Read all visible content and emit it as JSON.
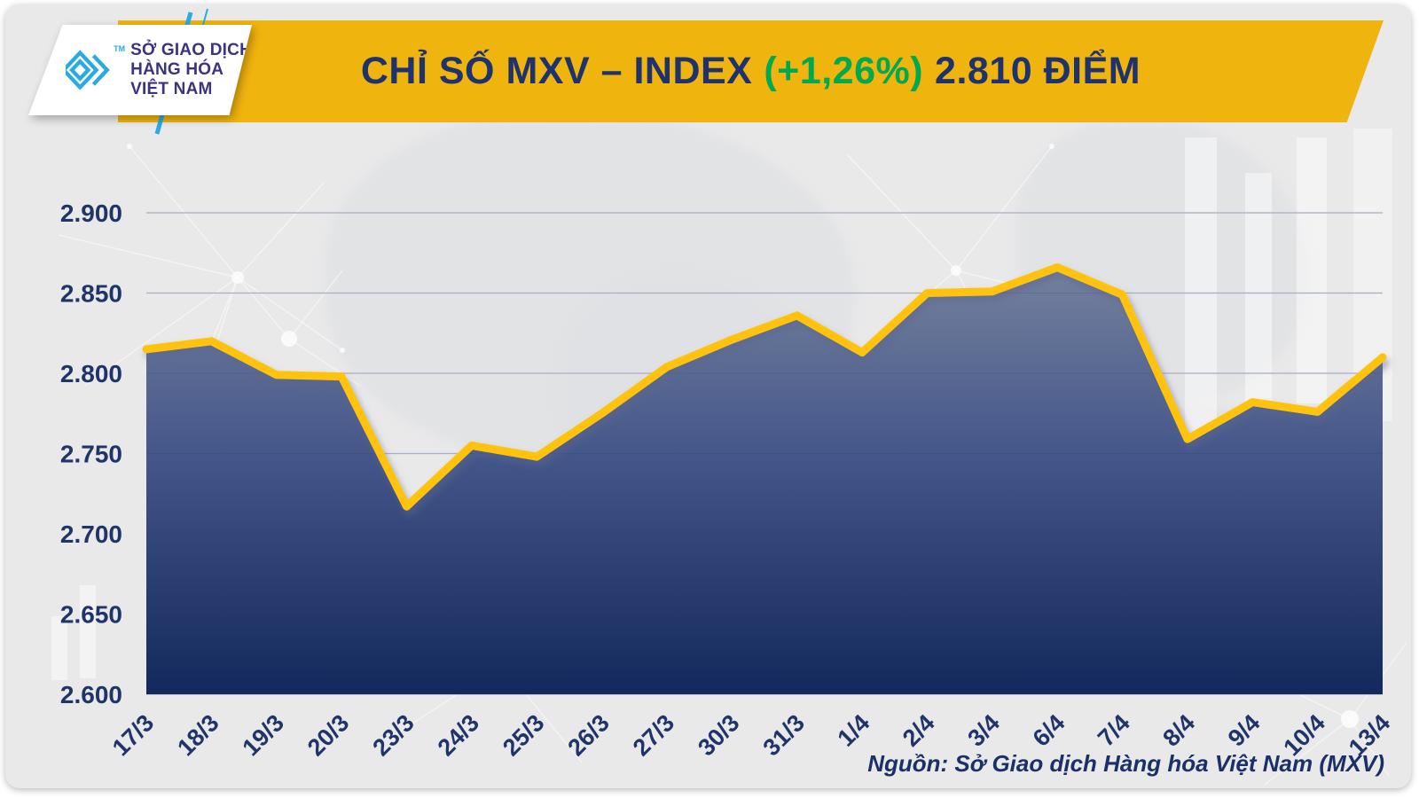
{
  "header": {
    "title_main": "CHỈ SỐ MXV – INDEX",
    "title_change": "(+1,26%)",
    "title_value": "2.810 ĐIỂM",
    "banner_color": "#F0B40E",
    "change_color": "#00A94F",
    "title_color": "#1E336E"
  },
  "logo": {
    "org_line1": "SỞ GIAO DỊCH",
    "org_line2": "HÀNG HÓA",
    "org_line3": "VIỆT NAM",
    "tm": "TM",
    "brand_color": "#29ABE2"
  },
  "footer": {
    "source": "Nguồn: Sở Giao dịch Hàng hóa Việt Nam (MXV)"
  },
  "chart_data": {
    "type": "area",
    "title": "CHỈ SỐ MXV – INDEX (+1,26%) 2.810 ĐIỂM",
    "unit": "điểm",
    "change_percent": "+1,26%",
    "latest_value_label": "2.810",
    "categories": [
      "17/3",
      "18/3",
      "19/3",
      "20/3",
      "23/3",
      "24/3",
      "25/3",
      "26/3",
      "27/3",
      "30/3",
      "31/3",
      "1/4",
      "2/4",
      "3/4",
      "6/4",
      "7/4",
      "8/4",
      "9/4",
      "10/4",
      "13/4"
    ],
    "values": [
      2815,
      2820,
      2799,
      2798,
      2717,
      2755,
      2748,
      2775,
      2804,
      2821,
      2836,
      2813,
      2850,
      2851,
      2866,
      2849,
      2759,
      2782,
      2776,
      2810
    ],
    "y_tick_labels": [
      "2.900",
      "2.850",
      "2.800",
      "2.750",
      "2.700",
      "2.650",
      "2.600"
    ],
    "y_tick_values": [
      2900,
      2850,
      2800,
      2750,
      2700,
      2650,
      2600
    ],
    "ylim": [
      2600,
      2900
    ],
    "xlabel": "",
    "ylabel": "",
    "grid": "horizontal",
    "legend": "none",
    "line_color": "#FFC30B",
    "area_gradient_top": "#76829E",
    "area_gradient_bottom": "#13285C"
  }
}
